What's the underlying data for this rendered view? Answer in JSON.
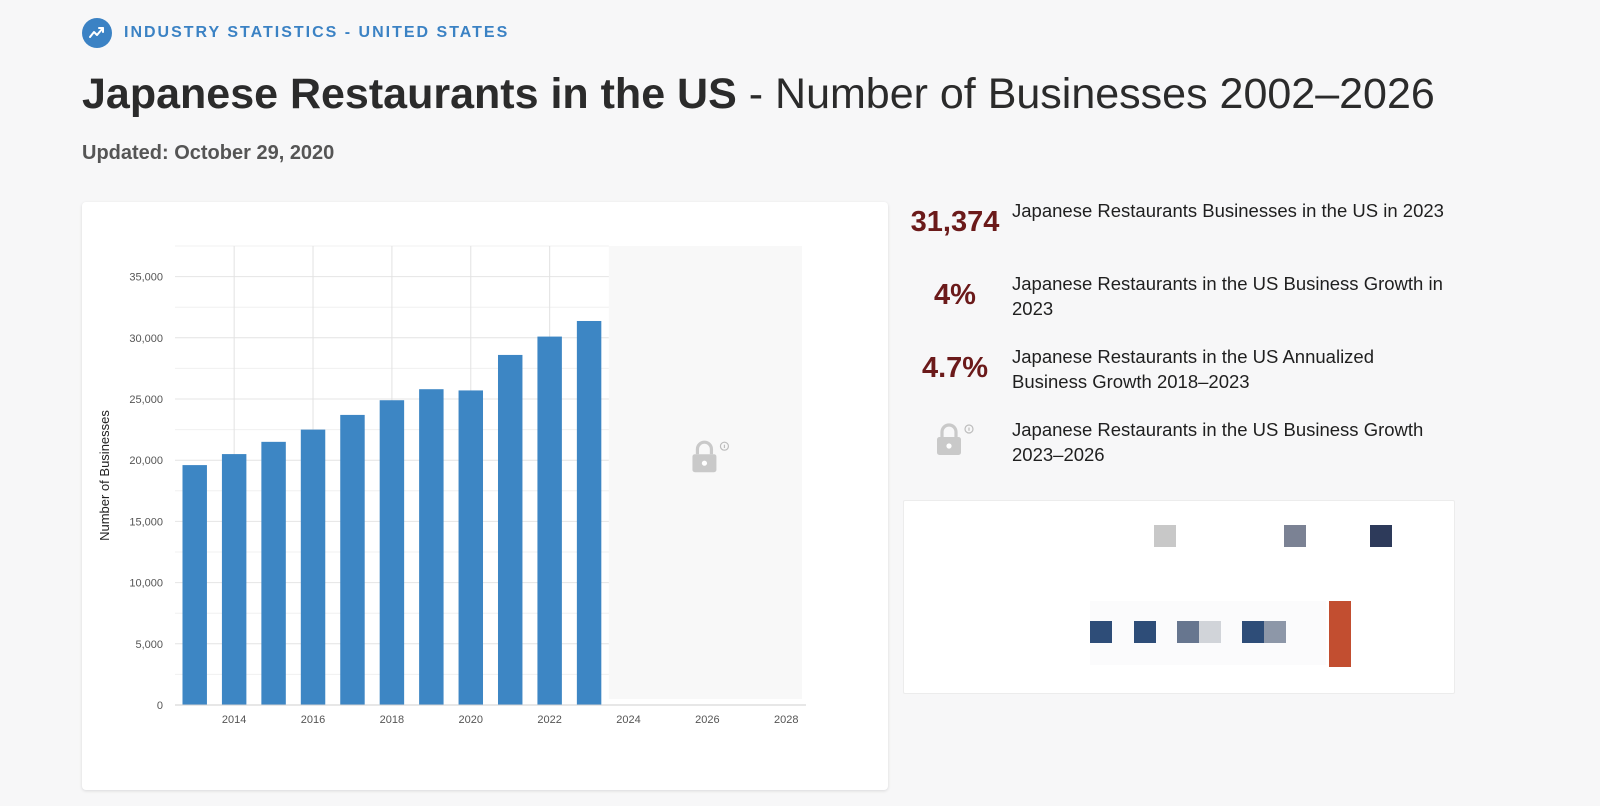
{
  "header": {
    "eyebrow": "INDUSTRY STATISTICS - UNITED STATES",
    "eyebrow_icon": "trend-line-icon",
    "title_strong": "Japanese Restaurants in the US",
    "title_rest": " - Number of Businesses 2002–2026",
    "updated": "Updated: October 29, 2020"
  },
  "chart_data": {
    "type": "bar",
    "categories": [
      2013,
      2014,
      2015,
      2016,
      2017,
      2018,
      2019,
      2020,
      2021,
      2022,
      2023
    ],
    "values": [
      19600,
      20500,
      21500,
      22500,
      23700,
      24900,
      25800,
      25700,
      28600,
      30100,
      31374
    ],
    "ylabel": "Number of Businesses",
    "ylim": [
      0,
      37500
    ],
    "yticks": [
      0,
      5000,
      10000,
      15000,
      20000,
      25000,
      30000,
      35000
    ],
    "ytick_labels": [
      "0",
      "5,000",
      "10,000",
      "15,000",
      "20,000",
      "25,000",
      "30,000",
      "35,000"
    ],
    "xlim": [
      2012.5,
      2028.5
    ],
    "xticks": [
      2014,
      2016,
      2018,
      2020,
      2022,
      2024,
      2026,
      2028
    ],
    "locked_range": [
      2023.5,
      2028.4
    ],
    "bar_color": "#3d86c4",
    "locked_color": "#f8f8f8",
    "grid": true
  },
  "stats": [
    {
      "value": "31,374",
      "label": "Japanese Restaurants Businesses in the US in 2023"
    },
    {
      "value": "4%",
      "label": "Japanese Restaurants in the US Business Growth in 2023"
    },
    {
      "value": "4.7%",
      "label": "Japanese Restaurants in the US Annualized Business Growth 2018–2023"
    },
    {
      "value": "",
      "locked": true,
      "icon": "lock-icon",
      "label": "Japanese Restaurants in the US Business Growth 2023–2026"
    }
  ],
  "colors": {
    "accent": "#3b82c4",
    "stat_value": "#6b1a1a",
    "legend_light": "#c8c8c8",
    "legend_mid": "#7b8294",
    "legend_dark": "#2d3a5a",
    "legend_bar": "#c24e30"
  }
}
